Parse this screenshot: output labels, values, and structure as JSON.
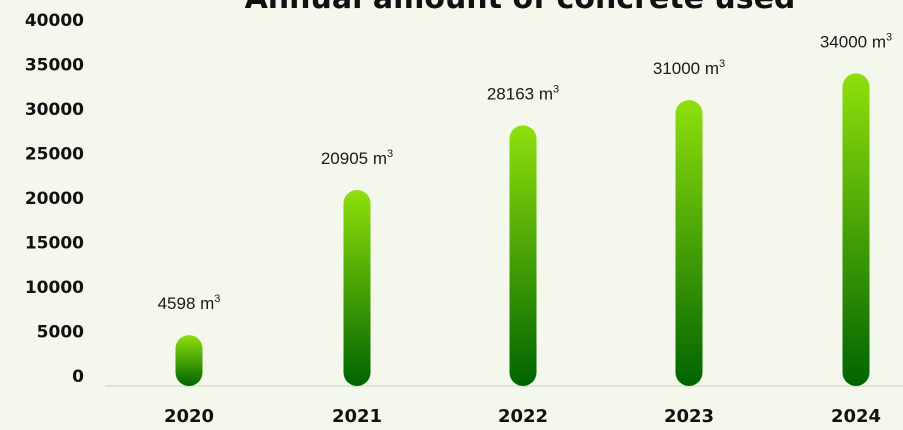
{
  "chart_data": {
    "type": "bar",
    "title": "Annual amount of concrete used",
    "categories": [
      "2020",
      "2021",
      "2022",
      "2023",
      "2024"
    ],
    "values": [
      4598,
      20905,
      28163,
      31000,
      34000
    ],
    "data_labels": [
      "4598 m",
      "20905 m",
      "28163 m",
      "31000 m",
      "34000 m"
    ],
    "unit_superscript": "3",
    "yticks": [
      "0",
      "5000",
      "10000",
      "15000",
      "20000",
      "25000",
      "30000",
      "35000",
      "40000"
    ],
    "ylim": [
      0,
      40000
    ],
    "xlabel": "",
    "ylabel": "",
    "grid": false,
    "colors": {
      "bar_top": "#8fe00b",
      "bar_bottom": "#006400",
      "axis": "#c9cfc0",
      "background": "#f4f8ec"
    }
  }
}
